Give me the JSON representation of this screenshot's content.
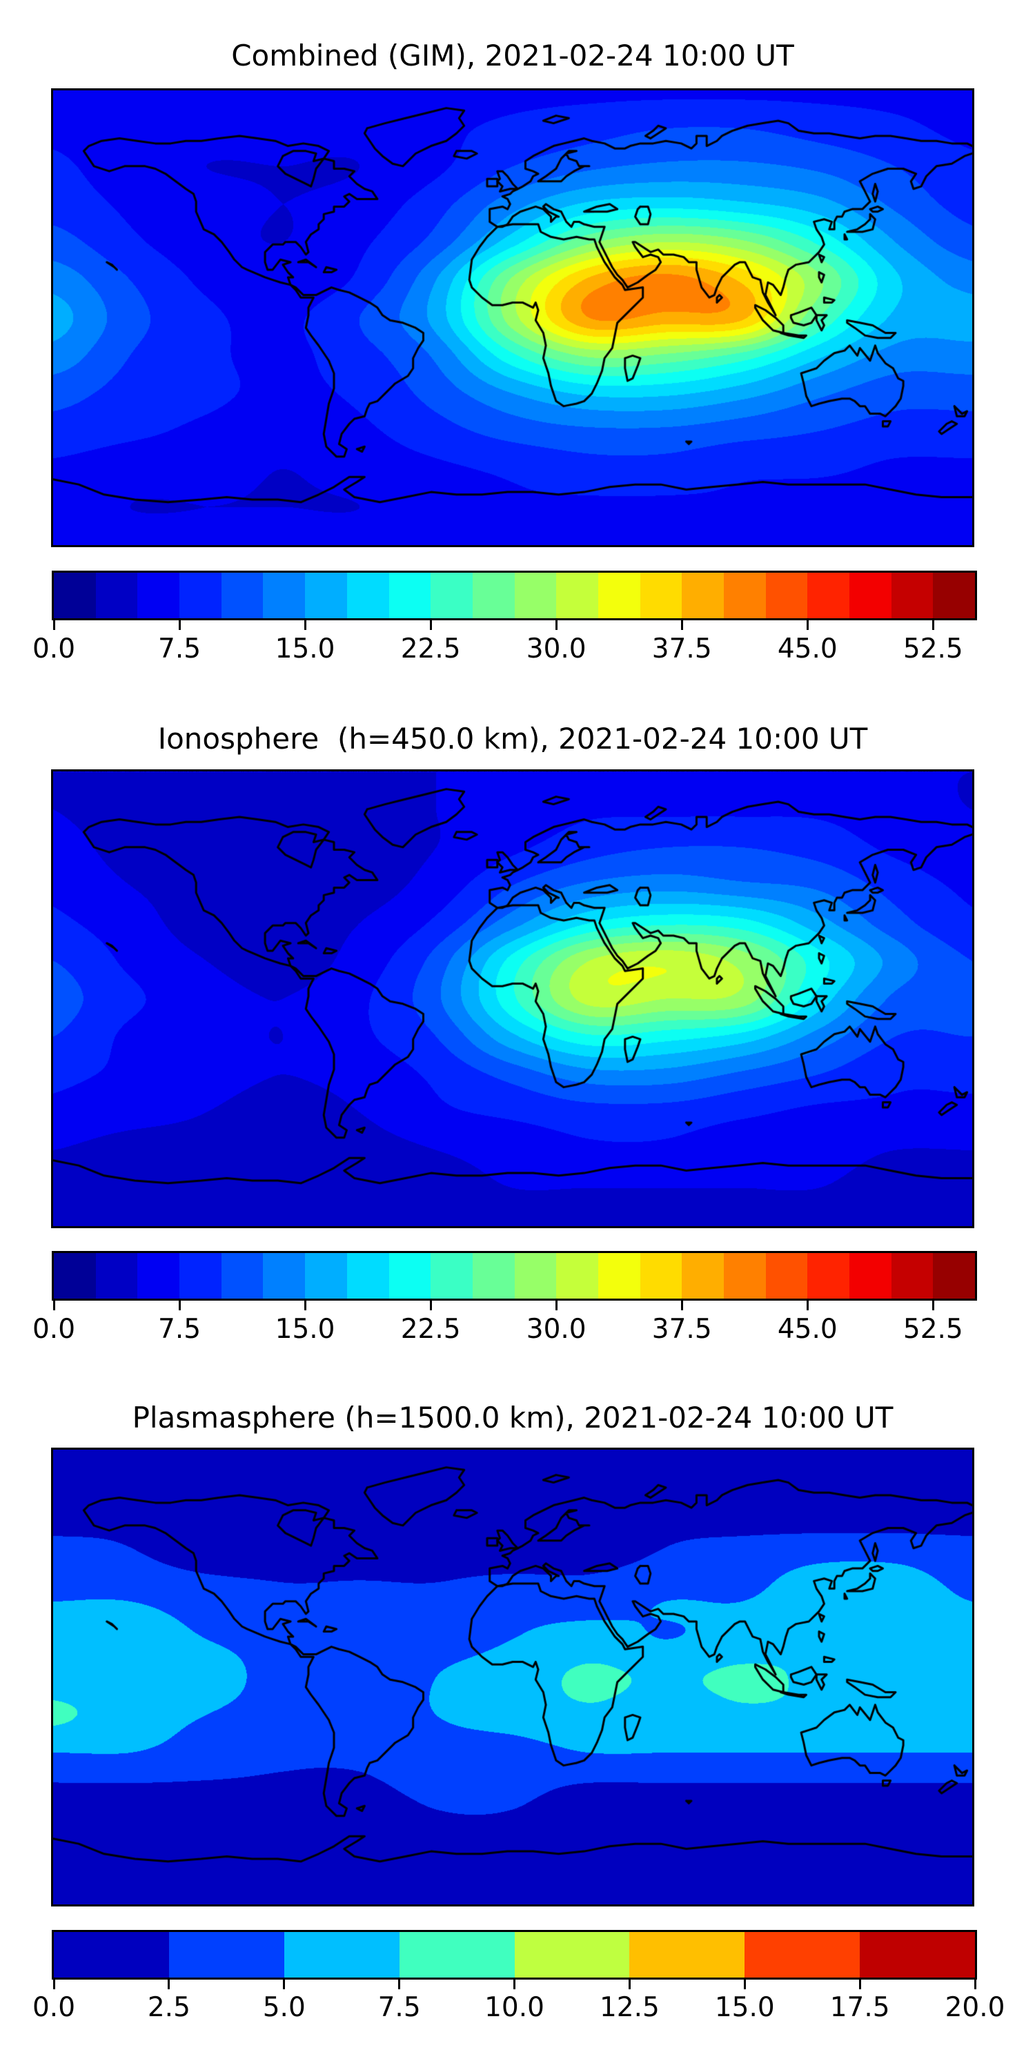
{
  "figure": {
    "background_color": "#ffffff",
    "coastline_color": "#000000",
    "panel_count": 3
  },
  "chart_data": [
    {
      "type": "heatmap",
      "subtype": "filled-contour-world-map",
      "title": "Combined (GIM), 2021-02-24 10:00 UT",
      "projection": "equirectangular",
      "lon_range": [
        -180,
        180
      ],
      "lat_range": [
        -90,
        90
      ],
      "colormap": "jet",
      "levels": {
        "min": 0,
        "max": 55,
        "step": 2.5
      },
      "colorbar_ticks": [
        "0.0",
        "7.5",
        "15.0",
        "22.5",
        "30.0",
        "37.5",
        "45.0",
        "52.5"
      ],
      "grid": {
        "lons": [
          -180,
          -150,
          -120,
          -90,
          -60,
          -30,
          0,
          30,
          60,
          90,
          120,
          150,
          180
        ],
        "lats": [
          90,
          75,
          60,
          45,
          30,
          15,
          0,
          -15,
          -30,
          -45,
          -60,
          -75,
          -90
        ],
        "values": [
          [
            7,
            7,
            7,
            7,
            7,
            7,
            7,
            7,
            7,
            7,
            7,
            7,
            7
          ],
          [
            7,
            6,
            6,
            6,
            6,
            7,
            8,
            9,
            10,
            10,
            9,
            8,
            7
          ],
          [
            8,
            6,
            5,
            5,
            5,
            7,
            10,
            12,
            13,
            13,
            12,
            10,
            8
          ],
          [
            9,
            7,
            6,
            5,
            6,
            9,
            14,
            18,
            19,
            18,
            16,
            12,
            9
          ],
          [
            11,
            8,
            6,
            5,
            7,
            11,
            19,
            27,
            30,
            28,
            22,
            15,
            11
          ],
          [
            14,
            10,
            7,
            6,
            8,
            15,
            28,
            38,
            41,
            37,
            28,
            18,
            14
          ],
          [
            16,
            11,
            8,
            7,
            10,
            16,
            29,
            40,
            39,
            38,
            25,
            17,
            16
          ],
          [
            14,
            10,
            8,
            7,
            9,
            13,
            22,
            28,
            27,
            24,
            18,
            14,
            14
          ],
          [
            11,
            9,
            8,
            7,
            8,
            11,
            15,
            18,
            18,
            16,
            13,
            11,
            11
          ],
          [
            9,
            8,
            7,
            6,
            7,
            9,
            11,
            12,
            12,
            11,
            10,
            9,
            9
          ],
          [
            7,
            6,
            6,
            5,
            6,
            7,
            8,
            9,
            9,
            8,
            8,
            7,
            7
          ],
          [
            6,
            5,
            5,
            5,
            5,
            6,
            7,
            7,
            7,
            7,
            6,
            6,
            6
          ],
          [
            6,
            6,
            6,
            6,
            6,
            6,
            6,
            6,
            6,
            6,
            6,
            6,
            6
          ]
        ]
      }
    },
    {
      "type": "heatmap",
      "subtype": "filled-contour-world-map",
      "title": "Ionosphere  (h=450.0 km), 2021-02-24 10:00 UT",
      "projection": "equirectangular",
      "lon_range": [
        -180,
        180
      ],
      "lat_range": [
        -90,
        90
      ],
      "colormap": "jet",
      "levels": {
        "min": 0,
        "max": 55,
        "step": 2.5
      },
      "colorbar_ticks": [
        "0.0",
        "7.5",
        "15.0",
        "22.5",
        "30.0",
        "37.5",
        "45.0",
        "52.5"
      ],
      "grid": {
        "lons": [
          -180,
          -150,
          -120,
          -90,
          -60,
          -30,
          0,
          30,
          60,
          90,
          120,
          150,
          180
        ],
        "lats": [
          90,
          75,
          60,
          45,
          30,
          15,
          0,
          -15,
          -30,
          -45,
          -60,
          -75,
          -90
        ],
        "values": [
          [
            5,
            5,
            5,
            5,
            5,
            5,
            5,
            5,
            5,
            5,
            5,
            5,
            5
          ],
          [
            5,
            4,
            4,
            4,
            4,
            5,
            6,
            7,
            7,
            7,
            7,
            6,
            5
          ],
          [
            6,
            4,
            3,
            3,
            4,
            5,
            7,
            9,
            10,
            10,
            9,
            7,
            6
          ],
          [
            7,
            5,
            4,
            4,
            4,
            6,
            10,
            13,
            14,
            13,
            12,
            9,
            7
          ],
          [
            8,
            6,
            4,
            4,
            5,
            8,
            14,
            20,
            22,
            21,
            16,
            11,
            8
          ],
          [
            10,
            7,
            5,
            4,
            6,
            11,
            21,
            30,
            32,
            29,
            21,
            14,
            10
          ],
          [
            11,
            8,
            6,
            5,
            7,
            12,
            22,
            31,
            30,
            29,
            19,
            12,
            11
          ],
          [
            10,
            7,
            6,
            5,
            7,
            10,
            17,
            22,
            21,
            19,
            14,
            10,
            10
          ],
          [
            8,
            7,
            6,
            5,
            6,
            8,
            11,
            14,
            14,
            12,
            10,
            8,
            8
          ],
          [
            7,
            6,
            5,
            4,
            5,
            7,
            8,
            9,
            9,
            8,
            7,
            7,
            7
          ],
          [
            5,
            4,
            4,
            4,
            4,
            5,
            6,
            7,
            7,
            6,
            6,
            5,
            5
          ],
          [
            4,
            4,
            3,
            3,
            3,
            4,
            5,
            5,
            5,
            5,
            5,
            4,
            4
          ],
          [
            4,
            4,
            4,
            4,
            4,
            4,
            4,
            4,
            4,
            4,
            4,
            4,
            4
          ]
        ]
      }
    },
    {
      "type": "heatmap",
      "subtype": "filled-contour-world-map",
      "title": "Plasmasphere (h=1500.0 km), 2021-02-24 10:00 UT",
      "projection": "equirectangular",
      "lon_range": [
        -180,
        180
      ],
      "lat_range": [
        -90,
        90
      ],
      "colormap": "jet",
      "levels": {
        "min": 0,
        "max": 20,
        "step": 2.5
      },
      "colorbar_ticks": [
        "0.0",
        "2.5",
        "5.0",
        "7.5",
        "10.0",
        "12.5",
        "15.0",
        "17.5",
        "20.0"
      ],
      "grid": {
        "lons": [
          -180,
          -150,
          -120,
          -90,
          -60,
          -30,
          0,
          30,
          60,
          90,
          120,
          150,
          180
        ],
        "lats": [
          90,
          75,
          60,
          45,
          30,
          15,
          0,
          -15,
          -30,
          -45,
          -60,
          -75,
          -90
        ],
        "values": [
          [
            1,
            1,
            1,
            1,
            1,
            1,
            1,
            1,
            1,
            1,
            1,
            1,
            1
          ],
          [
            1,
            1,
            1,
            1,
            1,
            1,
            1,
            1,
            1,
            1,
            1,
            1,
            1
          ],
          [
            2,
            2,
            1,
            1,
            1,
            1,
            1,
            1,
            2,
            2,
            2,
            2,
            2
          ],
          [
            4,
            3,
            2,
            2,
            2,
            2,
            2,
            2,
            3,
            4,
            5,
            5,
            4
          ],
          [
            5,
            5,
            4,
            3,
            3,
            3,
            4,
            4,
            5,
            5,
            6,
            6,
            5
          ],
          [
            6,
            6,
            5,
            4,
            3,
            4,
            5,
            6,
            5,
            6,
            7,
            6,
            6
          ],
          [
            6,
            6,
            6,
            4,
            3,
            5,
            6,
            8,
            7,
            8,
            7,
            6,
            6
          ],
          [
            8,
            6,
            5,
            4,
            4,
            5,
            6,
            7,
            6,
            7,
            7,
            7,
            7
          ],
          [
            5,
            5,
            4,
            3,
            3,
            4,
            4,
            5,
            5,
            5,
            5,
            5,
            5
          ],
          [
            2,
            2,
            2,
            2,
            2,
            3,
            3,
            2,
            2,
            2,
            2,
            2,
            2
          ],
          [
            1,
            1,
            1,
            1,
            1,
            2,
            2,
            1,
            1,
            1,
            1,
            1,
            1
          ],
          [
            1,
            1,
            1,
            1,
            1,
            1,
            1,
            1,
            1,
            1,
            1,
            1,
            1
          ],
          [
            1,
            1,
            1,
            1,
            1,
            1,
            1,
            1,
            1,
            1,
            1,
            1,
            1
          ]
        ]
      }
    }
  ]
}
